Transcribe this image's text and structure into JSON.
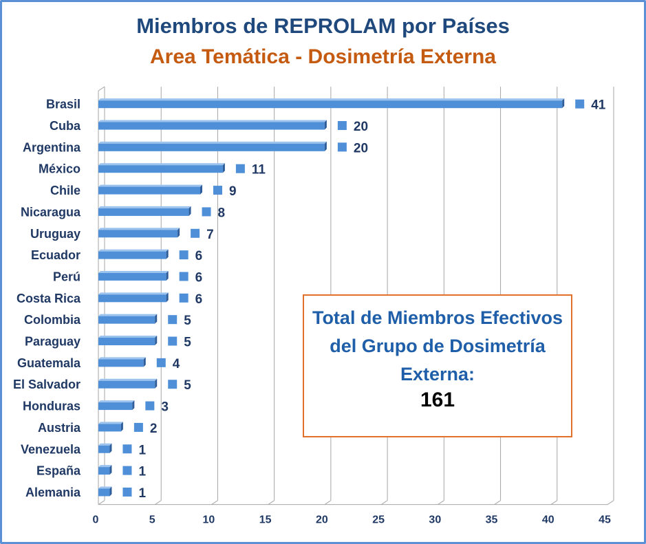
{
  "colors": {
    "bar": "#4f8fd8",
    "bar_dark": "#2e5d99",
    "bar_light": "#9cc3ee",
    "title": "#1f497d",
    "subtitle": "#c55a11",
    "box_border": "#e0702a",
    "grid": "#a6a6a6"
  },
  "total_box": {
    "text": "Total de Miembros Efectivos del Grupo de Dosimetría Externa:",
    "value": "161"
  },
  "chart_data": {
    "type": "bar",
    "orientation": "horizontal",
    "title": "Miembros de REPROLAM por Países",
    "subtitle": "Area Temática - Dosimetría Externa",
    "categories": [
      "Brasil",
      "Cuba",
      "Argentina",
      "México",
      "Chile",
      "Nicaragua",
      "Uruguay",
      "Ecuador",
      "Perú",
      "Costa Rica",
      "Colombia",
      "Paraguay",
      "Guatemala",
      "El Salvador",
      "Honduras",
      "Austria",
      "Venezuela",
      "España",
      "Alemania"
    ],
    "values": [
      41,
      20,
      20,
      11,
      9,
      8,
      7,
      6,
      6,
      6,
      5,
      5,
      4,
      5,
      3,
      2,
      1,
      1,
      1
    ],
    "xlim": [
      0,
      45
    ],
    "xticks": [
      0,
      5,
      10,
      15,
      20,
      25,
      30,
      35,
      40,
      45
    ],
    "grid": true,
    "data_labels": true
  }
}
